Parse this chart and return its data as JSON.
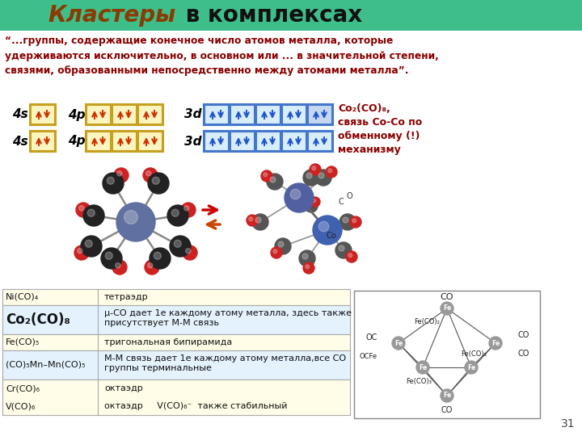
{
  "title_colored": "Кластеры",
  "title_rest": " в комплексах",
  "title_bg_color": "#3DBE8B",
  "title_colored_color": "#8B3A00",
  "title_rest_color": "#111111",
  "quote_text": "“...группы, содержащие конечное число атомов металла, которые\nудерживаются исключительно, в основном или ... в значительной степени,\nсвязями, образованными непосредственно между атомами металла”.",
  "quote_color": "#8B0000",
  "co2co8_label": "Co₂(CO)₈,\nсвязь Co-Co по\nобменному (!)\nмеханизму",
  "co2co8_color": "#8B0000",
  "table_rows": [
    {
      "formula": "Ni(CO)₄",
      "description": "тетраэдр",
      "bg": "#fffde7",
      "formula_bold": false,
      "desc_bold": false
    },
    {
      "formula": "Co₂(CO)₈",
      "description": "μ-CO дает 1e каждому атому металла, здесь также\nприсутствует M-M связь",
      "bg": "#e3f2fd",
      "formula_bold": true,
      "desc_bold": false
    },
    {
      "formula": "Fe(CO)₅",
      "description": "тригональная бипирамида",
      "bg": "#fffde7",
      "formula_bold": false,
      "desc_bold": false
    },
    {
      "formula": "(CO)₅Mn–Mn(CO)₅",
      "description": "M-M связь дает 1e каждому атому металла,все CO\nгруппы терминальные",
      "bg": "#e3f2fd",
      "formula_bold": false,
      "desc_bold": false
    },
    {
      "formula": "Cr(CO)₆",
      "description": "октаэдр",
      "bg": "#fffde7",
      "formula_bold": false,
      "desc_bold": false
    },
    {
      "formula": "V(CO)₆",
      "description": "октаэдр     V(CO)₆⁻  также стабильный",
      "bg": "#fffde7",
      "formula_bold": false,
      "desc_bold": false
    }
  ],
  "page_number": "31",
  "orbital_box_color_warm": "#fdf5c0",
  "orbital_box_border_warm": "#c8a020",
  "orbital_box_color_cool": "#d8eeff",
  "orbital_box_border_cool": "#4477cc",
  "arrow_color_warm": "#cc3300",
  "arrow_color_cool": "#2255cc"
}
